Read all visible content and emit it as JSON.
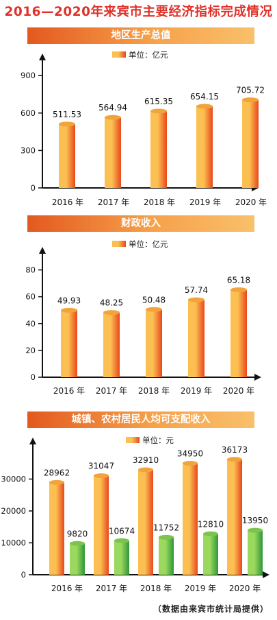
{
  "title": "2016—2020年来宾市主要经济指标完成情况",
  "source": "（数据由来宾市统计局提供）",
  "colors": {
    "title": "#e0312a",
    "bar_orange_light": "#fbbf52",
    "bar_orange_dark": "#e8481c",
    "bar_green_light": "#9ad95e",
    "bar_green_dark": "#2f9638"
  },
  "chart_data": [
    {
      "type": "bar",
      "title": "地区生产总值",
      "unit": "单位：亿元",
      "categories": [
        "2016 年",
        "2017 年",
        "2018 年",
        "2019 年",
        "2020 年"
      ],
      "series": [
        {
          "values": [
            511.53,
            564.94,
            615.35,
            654.15,
            705.72
          ],
          "labels": [
            "511.53",
            "564.94",
            "615.35",
            "654.15",
            "705.72"
          ]
        }
      ],
      "ylim": [
        0,
        1000
      ],
      "yticks": [
        0,
        300,
        600,
        900
      ],
      "grid": false
    },
    {
      "type": "bar",
      "title": "财政收入",
      "unit": "单位：亿元",
      "categories": [
        "2016 年",
        "2017 年",
        "2018 年",
        "2019 年",
        "2020 年"
      ],
      "series": [
        {
          "values": [
            49.93,
            48.25,
            50.48,
            57.74,
            65.18
          ],
          "labels": [
            "49.93",
            "48.25",
            "50.48",
            "57.74",
            "65.18"
          ]
        }
      ],
      "ylim": [
        0,
        90
      ],
      "yticks": [
        0,
        20,
        40,
        60,
        80
      ],
      "grid": false
    },
    {
      "type": "bar",
      "title": "城镇、农村居民人均可支配收入",
      "unit": "单位：元",
      "categories": [
        "2016 年",
        "2017 年",
        "2018 年",
        "2019 年",
        "2020 年"
      ],
      "series": [
        {
          "values": [
            28962,
            31047,
            32910,
            34950,
            36173
          ],
          "labels": [
            "28962",
            "31047",
            "32910",
            "34950",
            "36173"
          ]
        },
        {
          "values": [
            9820,
            10674,
            11752,
            12810,
            13950
          ],
          "labels": [
            "9820",
            "10674",
            "11752",
            "12810",
            "13950"
          ]
        }
      ],
      "ylim": [
        0,
        40000
      ],
      "yticks": [
        0,
        10000,
        20000,
        30000
      ],
      "grid": false
    }
  ]
}
